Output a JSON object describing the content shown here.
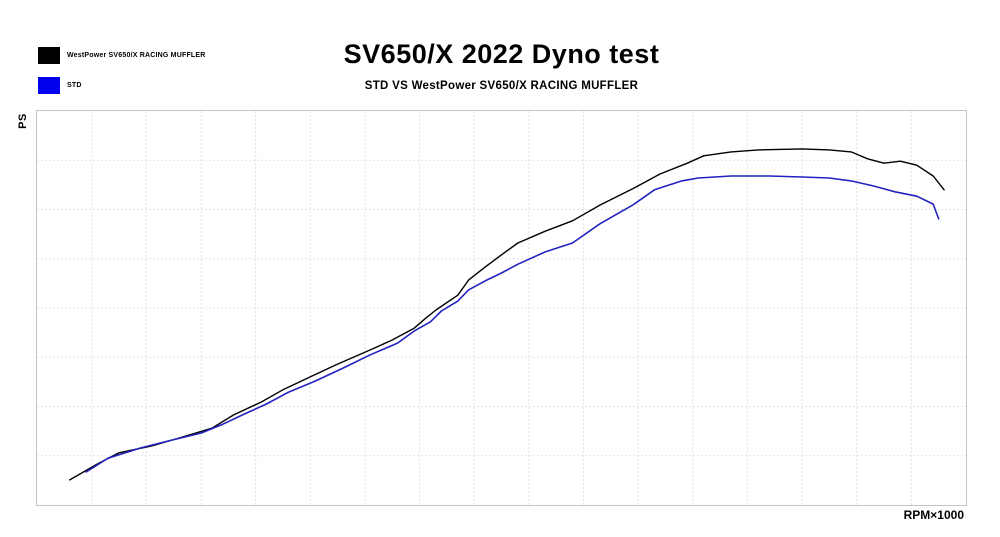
{
  "header": {
    "title": "SV650/X 2022 Dyno test",
    "subtitle": "STD VS WestPower SV650/X RACING MUFFLER"
  },
  "legend": {
    "items": [
      {
        "label": "WestPower SV650/X RACING MUFFLER",
        "swatch_color": "#000000"
      },
      {
        "label": "STD",
        "swatch_color": "#0000ee"
      }
    ]
  },
  "axes": {
    "y_title": "PS",
    "x_title": "RPM×1000"
  },
  "chart_data": {
    "type": "line",
    "title": "SV650/X 2022 Dyno test",
    "subtitle": "STD VS WestPower SV650/X RACING MUFFLER",
    "xlabel": "RPM×1000",
    "ylabel": "PS",
    "xlim": [
      2,
      10.5
    ],
    "ylim": [
      0,
      80
    ],
    "x_gridline_step": 0.5,
    "y_gridline_step": 10,
    "grid": "dashed",
    "gridline_color": "#e3e3e3",
    "border_color": "#c5c5c5",
    "legend_position": "top-left",
    "tick_labels_shown": false,
    "series": [
      {
        "name": "WestPower SV650/X RACING MUFFLER",
        "color": "#000000",
        "line_width": 1.4,
        "points": [
          [
            2.3,
            5.1
          ],
          [
            2.55,
            8.3
          ],
          [
            2.75,
            10.6
          ],
          [
            3.05,
            12.0
          ],
          [
            3.3,
            13.6
          ],
          [
            3.6,
            15.6
          ],
          [
            3.8,
            18.3
          ],
          [
            4.05,
            20.9
          ],
          [
            4.25,
            23.4
          ],
          [
            4.5,
            26.0
          ],
          [
            4.75,
            28.6
          ],
          [
            5.05,
            31.5
          ],
          [
            5.25,
            33.5
          ],
          [
            5.45,
            35.9
          ],
          [
            5.55,
            37.8
          ],
          [
            5.65,
            39.6
          ],
          [
            5.85,
            42.6
          ],
          [
            5.95,
            45.7
          ],
          [
            6.1,
            48.3
          ],
          [
            6.25,
            50.8
          ],
          [
            6.4,
            53.2
          ],
          [
            6.65,
            55.6
          ],
          [
            6.9,
            57.7
          ],
          [
            7.15,
            60.9
          ],
          [
            7.45,
            64.2
          ],
          [
            7.7,
            67.2
          ],
          [
            7.95,
            69.4
          ],
          [
            8.1,
            70.9
          ],
          [
            8.35,
            71.7
          ],
          [
            8.6,
            72.1
          ],
          [
            9.0,
            72.3
          ],
          [
            9.25,
            72.1
          ],
          [
            9.45,
            71.7
          ],
          [
            9.6,
            70.3
          ],
          [
            9.75,
            69.4
          ],
          [
            9.9,
            69.8
          ],
          [
            10.05,
            69.0
          ],
          [
            10.2,
            66.8
          ],
          [
            10.3,
            64.0
          ]
        ]
      },
      {
        "name": "STD",
        "color": "#2222c0",
        "line_width": 1.6,
        "points": [
          [
            2.45,
            6.7
          ],
          [
            2.65,
            9.5
          ],
          [
            2.95,
            11.6
          ],
          [
            3.2,
            13.0
          ],
          [
            3.5,
            14.6
          ],
          [
            3.7,
            16.4
          ],
          [
            3.9,
            18.5
          ],
          [
            4.1,
            20.5
          ],
          [
            4.3,
            22.9
          ],
          [
            4.55,
            25.2
          ],
          [
            4.8,
            27.8
          ],
          [
            5.05,
            30.5
          ],
          [
            5.3,
            32.9
          ],
          [
            5.45,
            35.3
          ],
          [
            5.6,
            37.2
          ],
          [
            5.7,
            39.4
          ],
          [
            5.85,
            41.4
          ],
          [
            5.95,
            43.7
          ],
          [
            6.1,
            45.5
          ],
          [
            6.25,
            47.1
          ],
          [
            6.4,
            48.9
          ],
          [
            6.65,
            51.4
          ],
          [
            6.9,
            53.2
          ],
          [
            7.15,
            57.1
          ],
          [
            7.45,
            60.9
          ],
          [
            7.65,
            64.0
          ],
          [
            7.9,
            65.8
          ],
          [
            8.05,
            66.4
          ],
          [
            8.35,
            66.8
          ],
          [
            8.7,
            66.8
          ],
          [
            9.0,
            66.6
          ],
          [
            9.25,
            66.4
          ],
          [
            9.45,
            65.8
          ],
          [
            9.65,
            64.8
          ],
          [
            9.85,
            63.6
          ],
          [
            10.05,
            62.7
          ],
          [
            10.2,
            61.1
          ],
          [
            10.25,
            58.1
          ]
        ]
      }
    ]
  }
}
